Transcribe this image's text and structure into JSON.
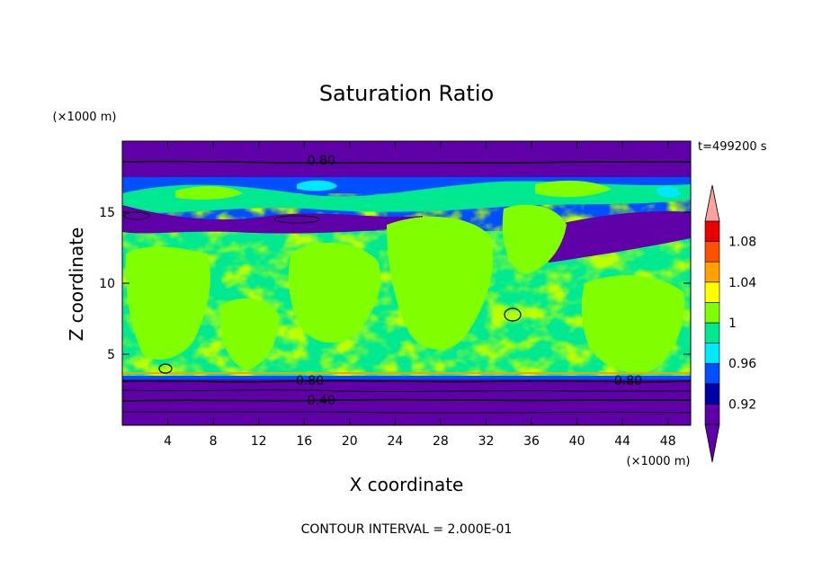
{
  "chart_data": {
    "type": "heatmap",
    "title": "Saturation Ratio",
    "xlabel": "X coordinate",
    "ylabel": "Z coordinate",
    "x_unit": "(×1000 m)",
    "y_unit": "(×1000 m)",
    "xlim": [
      0,
      50
    ],
    "ylim": [
      0,
      20
    ],
    "x_ticks": [
      4,
      8,
      12,
      16,
      20,
      24,
      28,
      32,
      36,
      40,
      44,
      48
    ],
    "y_ticks": [
      5,
      10,
      15
    ],
    "x_tick_labels": [
      "4",
      "8",
      "12",
      "16",
      "20",
      "24",
      "28",
      "32",
      "36",
      "40",
      "44",
      "48"
    ],
    "y_tick_labels": [
      "5",
      "10",
      "15"
    ],
    "time_label": "t=499200 s",
    "footer": "CONTOUR INTERVAL = 2.000E-01",
    "contour_labels": [
      {
        "text": "0.80",
        "x": 17.5,
        "y": 18.6
      },
      {
        "text": "0.80",
        "x": 16.5,
        "y": 3.1
      },
      {
        "text": "0.80",
        "x": 44.5,
        "y": 3.1
      },
      {
        "text": "0.40",
        "x": 17.5,
        "y": 1.7
      }
    ],
    "colorbar": {
      "levels": [
        0.9,
        0.92,
        0.94,
        0.96,
        0.98,
        1.0,
        1.02,
        1.04,
        1.06,
        1.08,
        1.1
      ],
      "tick_labels": [
        "0.92",
        "0.96",
        "1",
        "1.04",
        "1.08"
      ],
      "tick_values": [
        0.92,
        0.96,
        1.0,
        1.04,
        1.08
      ],
      "colors": [
        "#6000a8",
        "#0000a8",
        "#0050ff",
        "#00e8ff",
        "#00e890",
        "#80ff00",
        "#ffff00",
        "#ffa000",
        "#ff5000",
        "#e80000"
      ],
      "under_color": "#6000a8",
      "over_color": "#ffa0a0"
    },
    "field_layers": [
      {
        "z_range": [
          0,
          3.2
        ],
        "value": 0.5,
        "desc": "lower dry layer"
      },
      {
        "z_range": [
          3.2,
          13.5
        ],
        "value": 1.0,
        "desc": "near-saturated mid layer (green)"
      },
      {
        "z_range": [
          13.5,
          17.5
        ],
        "value": 0.95,
        "desc": "transition layer with streaks"
      },
      {
        "z_range": [
          17.5,
          20
        ],
        "value": 0.7,
        "desc": "upper dry layer"
      }
    ]
  }
}
